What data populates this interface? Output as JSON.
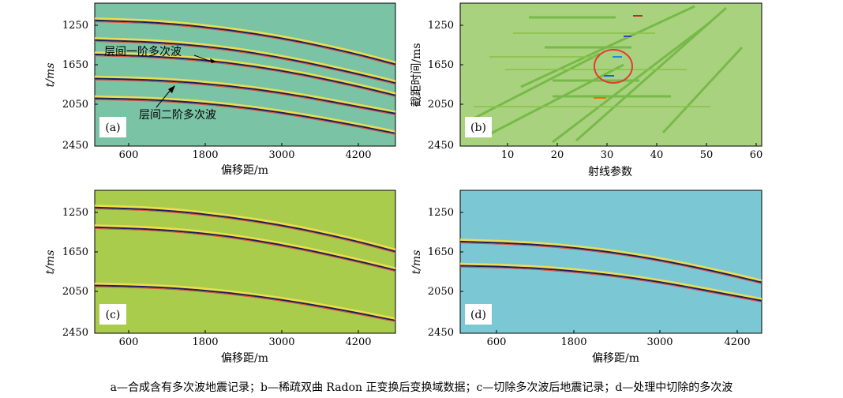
{
  "figure": {
    "caption": "a—合成含有多次波地震记录；b—稀疏双曲 Radon 正变换后变换域数据；c—切除多次波后地震记录；d—处理中切除的多次波"
  },
  "panels": [
    {
      "id": "a",
      "tag": "(a)",
      "bg": "#7ac3a5",
      "ylabel": "t/ms",
      "xlabel": "偏移距/m",
      "yticks": [
        "1250",
        "1650",
        "2050",
        "2450"
      ],
      "xticks": [
        "600",
        "1800",
        "3000",
        "4200"
      ],
      "annotations": [
        "层间一阶多次波",
        "层间二阶多次波"
      ]
    },
    {
      "id": "b",
      "tag": "(b)",
      "bg": "#a9d27f",
      "ylabel": "截距时间/ms",
      "xlabel": "射线参数",
      "yticks": [
        "1250",
        "1650",
        "2050",
        "2450"
      ],
      "xticks": [
        "10",
        "20",
        "30",
        "40",
        "50",
        "60"
      ]
    },
    {
      "id": "c",
      "tag": "(c)",
      "bg": "#a9cc4c",
      "ylabel": "t/ms",
      "xlabel": "偏移距/m",
      "yticks": [
        "1250",
        "1650",
        "2050",
        "2450"
      ],
      "xticks": [
        "600",
        "1800",
        "3000",
        "4200"
      ]
    },
    {
      "id": "d",
      "tag": "(d)",
      "bg": "#7bc8d4",
      "ylabel": "t/ms",
      "xlabel": "偏移距/m",
      "yticks": [
        "1250",
        "1650",
        "2050",
        "2450"
      ],
      "xticks": [
        "600",
        "1800",
        "3000",
        "4200"
      ]
    }
  ],
  "chart_data": [
    {
      "type": "line",
      "panel": "a",
      "x": [
        0,
        1000,
        2000,
        3000,
        4000,
        4700
      ],
      "xlim": [
        0,
        4700
      ],
      "ylim": [
        2450,
        1000
      ],
      "series": [
        {
          "values": [
            1175,
            1195,
            1260,
            1360,
            1500,
            1620
          ]
        },
        {
          "values": [
            1375,
            1395,
            1455,
            1560,
            1700,
            1810
          ]
        },
        {
          "values": [
            1520,
            1540,
            1595,
            1690,
            1825,
            1935
          ]
        },
        {
          "values": [
            1765,
            1780,
            1830,
            1915,
            2035,
            2120
          ]
        },
        {
          "values": [
            1965,
            1980,
            2030,
            2115,
            2230,
            2320
          ]
        }
      ]
    },
    {
      "type": "line",
      "panel": "c",
      "x": [
        0,
        1000,
        2000,
        3000,
        4000,
        4700
      ],
      "xlim": [
        0,
        4700
      ],
      "ylim": [
        2450,
        1000
      ],
      "series": [
        {
          "values": [
            1175,
            1195,
            1260,
            1360,
            1500,
            1620
          ]
        },
        {
          "values": [
            1375,
            1395,
            1455,
            1560,
            1700,
            1810
          ]
        },
        {
          "values": [
            1965,
            1980,
            2030,
            2115,
            2230,
            2320
          ]
        }
      ]
    },
    {
      "type": "line",
      "panel": "d",
      "x": [
        0,
        1000,
        2000,
        3000,
        4000,
        4700
      ],
      "xlim": [
        0,
        4700
      ],
      "ylim": [
        2450,
        1000
      ],
      "series": [
        {
          "values": [
            1520,
            1540,
            1595,
            1690,
            1825,
            1935
          ]
        },
        {
          "values": [
            1765,
            1780,
            1830,
            1915,
            2035,
            2120
          ]
        }
      ]
    }
  ]
}
